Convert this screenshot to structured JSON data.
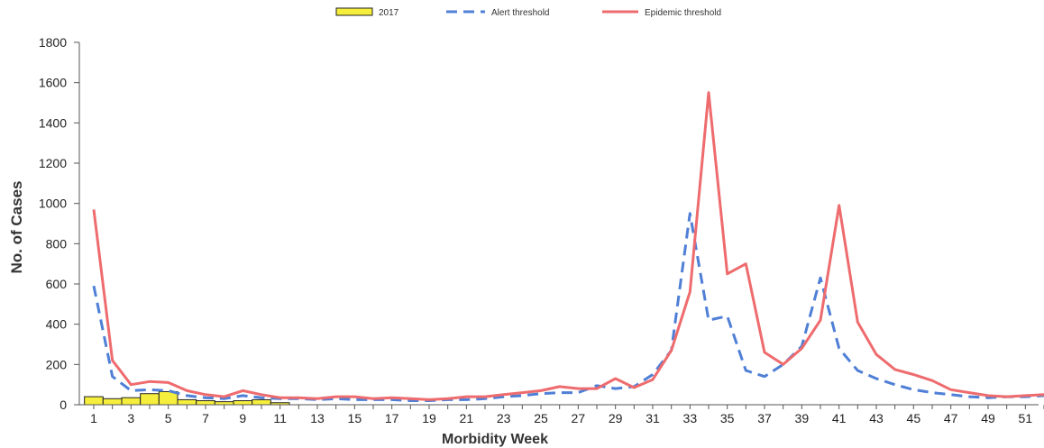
{
  "chart_data": {
    "type": "bar",
    "title": "",
    "xlabel": "Morbidity Week",
    "ylabel": "No. of Cases",
    "ylim": [
      0,
      1800
    ],
    "yticks": [
      0,
      200,
      400,
      600,
      800,
      1000,
      1200,
      1400,
      1600,
      1800
    ],
    "xlim": [
      1,
      52
    ],
    "xticks": [
      1,
      3,
      5,
      7,
      9,
      11,
      13,
      15,
      17,
      19,
      21,
      23,
      25,
      27,
      29,
      31,
      33,
      35,
      37,
      39,
      41,
      43,
      45,
      47,
      49,
      51
    ],
    "grid": false,
    "legend_position": "top-center",
    "series": [
      {
        "name": "2017",
        "kind": "bar",
        "color": "#f5ee3c",
        "weeks": [
          1,
          2,
          3,
          4,
          5,
          6,
          7,
          8,
          9,
          10,
          11
        ],
        "values": [
          40,
          30,
          35,
          55,
          65,
          25,
          20,
          15,
          20,
          25,
          10
        ]
      },
      {
        "name": "Alert threshold",
        "kind": "line",
        "style": "dashed",
        "color": "#4f7fd6",
        "weeks": [
          1,
          2,
          3,
          4,
          5,
          6,
          7,
          8,
          9,
          10,
          11,
          12,
          13,
          14,
          15,
          16,
          17,
          18,
          19,
          20,
          21,
          22,
          23,
          24,
          25,
          26,
          27,
          28,
          29,
          30,
          31,
          32,
          33,
          34,
          35,
          36,
          37,
          38,
          39,
          40,
          41,
          42,
          43,
          44,
          45,
          46,
          47,
          48,
          49,
          50,
          51,
          52
        ],
        "values": [
          590,
          140,
          70,
          75,
          70,
          45,
          35,
          30,
          45,
          35,
          30,
          30,
          25,
          30,
          25,
          25,
          25,
          20,
          20,
          25,
          25,
          30,
          40,
          45,
          55,
          60,
          60,
          95,
          80,
          90,
          150,
          270,
          950,
          420,
          440,
          170,
          140,
          200,
          290,
          630,
          280,
          170,
          130,
          100,
          75,
          60,
          50,
          40,
          35,
          40,
          40,
          45
        ]
      },
      {
        "name": "Epidemic threshold",
        "kind": "line",
        "style": "solid",
        "color": "#ee6b6e",
        "weeks": [
          1,
          2,
          3,
          4,
          5,
          6,
          7,
          8,
          9,
          10,
          11,
          12,
          13,
          14,
          15,
          16,
          17,
          18,
          19,
          20,
          21,
          22,
          23,
          24,
          25,
          26,
          27,
          28,
          29,
          30,
          31,
          32,
          33,
          34,
          35,
          36,
          37,
          38,
          39,
          40,
          41,
          42,
          43,
          44,
          45,
          46,
          47,
          48,
          49,
          50,
          51,
          52
        ],
        "values": [
          970,
          220,
          100,
          115,
          110,
          70,
          50,
          40,
          70,
          50,
          35,
          35,
          30,
          40,
          40,
          30,
          35,
          30,
          25,
          30,
          40,
          40,
          50,
          60,
          70,
          90,
          80,
          80,
          130,
          85,
          125,
          270,
          560,
          1550,
          650,
          700,
          260,
          200,
          280,
          420,
          990,
          410,
          250,
          175,
          150,
          120,
          75,
          60,
          45,
          40,
          45,
          50
        ]
      }
    ]
  }
}
